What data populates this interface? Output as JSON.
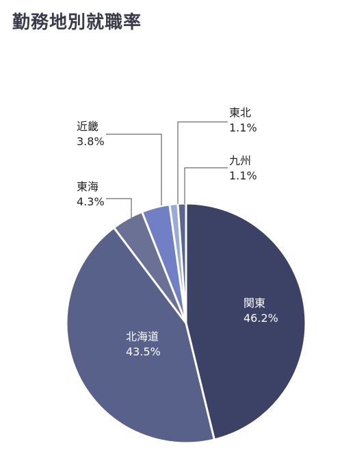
{
  "title": "勤務地別就職率",
  "chart_data": {
    "type": "pie",
    "start": "12 o'clock",
    "direction": "clockwise",
    "slices": [
      {
        "label": "関東",
        "value": 46.2,
        "display": "46.2%",
        "color": "#3b4266",
        "label_pos": "inside"
      },
      {
        "label": "北海道",
        "value": 43.5,
        "display": "43.5%",
        "color": "#58618a",
        "label_pos": "inside"
      },
      {
        "label": "東海",
        "value": 4.3,
        "display": "4.3%",
        "color": "#6b7195",
        "label_pos": "outside"
      },
      {
        "label": "近畿",
        "value": 3.8,
        "display": "3.8%",
        "color": "#7180c4",
        "label_pos": "outside"
      },
      {
        "label": "東北",
        "value": 1.1,
        "display": "1.1%",
        "color": "#9aaad8",
        "label_pos": "outside"
      },
      {
        "label": "九州",
        "value": 1.1,
        "display": "1.1%",
        "color": "#5a6590",
        "label_pos": "outside"
      }
    ]
  }
}
